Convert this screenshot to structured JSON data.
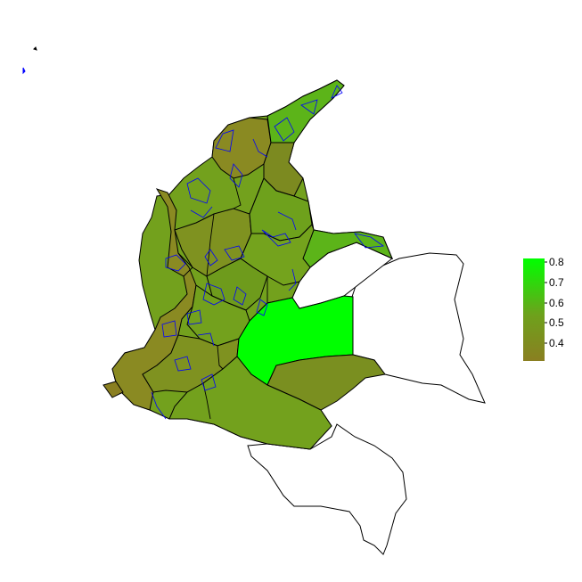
{
  "legend": {
    "ticks": [
      "0.8",
      "0.7",
      "0.6",
      "0.5",
      "0.4"
    ],
    "color_low": "#8a7f21",
    "color_high": "#00ff00"
  },
  "colors": {
    "olive": "#8a8a22",
    "olive_dark": "#7c8a20",
    "green_mid": "#6ea11c",
    "green_light": "#5cb419",
    "bright": "#00ff00",
    "river": "#0000ff",
    "border": "#000000"
  }
}
